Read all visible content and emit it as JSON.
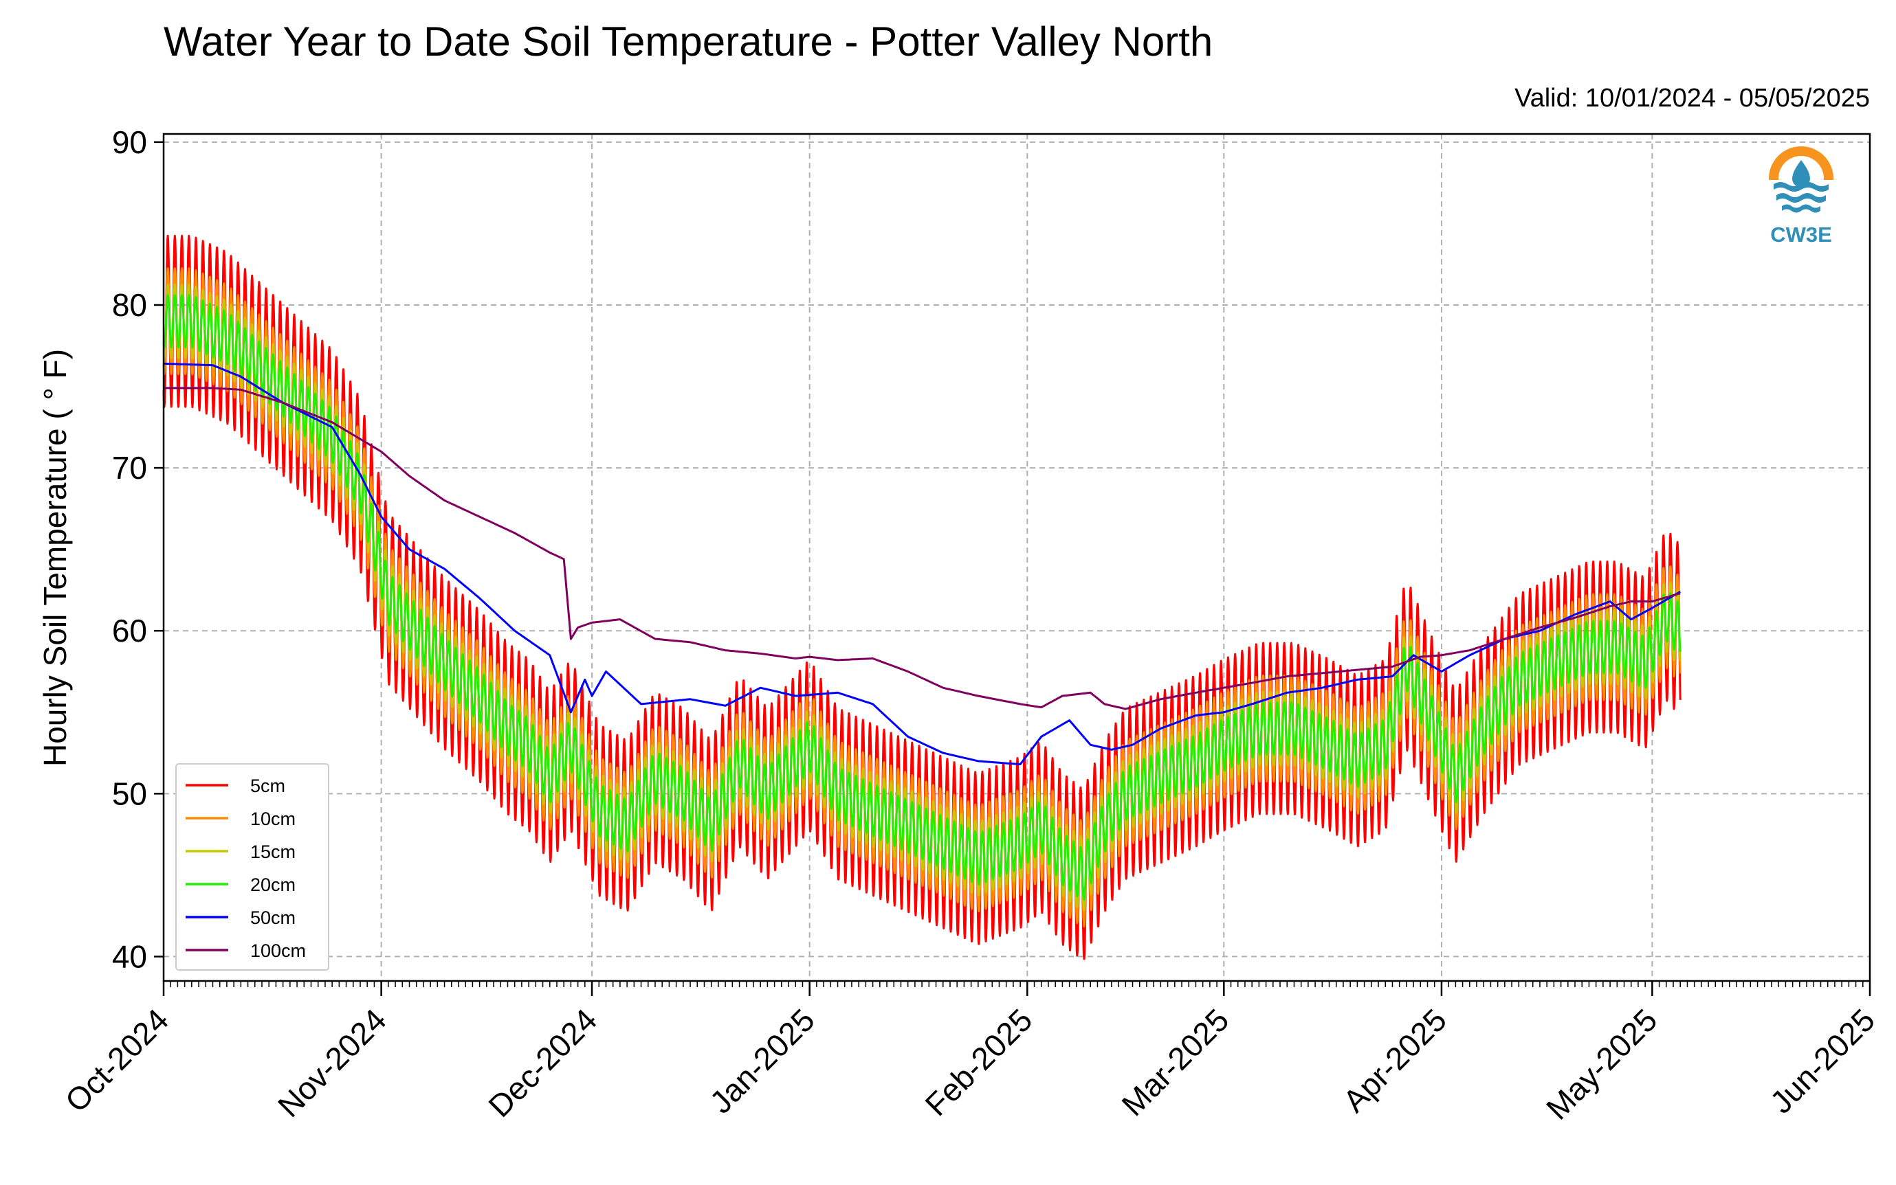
{
  "title": "Water Year to Date Soil Temperature - Potter Valley North",
  "valid_range": "Valid: 10/01/2024 - 05/05/2025",
  "logo": {
    "text": "CW3E",
    "icon": "cw3e-logo-icon"
  },
  "colors": {
    "5cm": "#ff0000",
    "10cm": "#ff8c00",
    "15cm": "#c8c800",
    "20cm": "#22ee00",
    "50cm": "#0000ff",
    "100cm": "#800060"
  },
  "chart_data": {
    "type": "line",
    "title": "Water Year to Date Soil Temperature - Potter Valley North",
    "xlabel": "",
    "ylabel": "Hourly Soil Temperature ( ° F)",
    "xlim": [
      "2024-10-01",
      "2025-06-01"
    ],
    "ylim": [
      38.5,
      90.5
    ],
    "yticks": [
      40,
      50,
      60,
      70,
      80,
      90
    ],
    "xticks": [
      {
        "date": "2024-10-01",
        "label": "Oct-2024"
      },
      {
        "date": "2024-11-01",
        "label": "Nov-2024"
      },
      {
        "date": "2024-12-01",
        "label": "Dec-2024"
      },
      {
        "date": "2025-01-01",
        "label": "Jan-2025"
      },
      {
        "date": "2025-02-01",
        "label": "Feb-2025"
      },
      {
        "date": "2025-03-01",
        "label": "Mar-2025"
      },
      {
        "date": "2025-04-01",
        "label": "Apr-2025"
      },
      {
        "date": "2025-05-01",
        "label": "May-2025"
      },
      {
        "date": "2025-06-01",
        "label": "Jun-2025"
      }
    ],
    "grid": true,
    "legend_position": "lower-left",
    "series_order": [
      "5cm",
      "10cm",
      "15cm",
      "20cm",
      "50cm",
      "100cm"
    ],
    "legend": [
      "5cm",
      "10cm",
      "15cm",
      "20cm",
      "50cm",
      "100cm"
    ],
    "series": [
      {
        "name": "5cm",
        "color": "#ff0000",
        "amplitude": 10.5,
        "x": [
          "2024-10-01",
          "2024-10-05",
          "2024-10-10",
          "2024-10-15",
          "2024-10-20",
          "2024-10-25",
          "2024-10-29",
          "2024-11-02",
          "2024-11-06",
          "2024-11-10",
          "2024-11-15",
          "2024-11-19",
          "2024-11-22",
          "2024-11-25",
          "2024-11-28",
          "2024-12-02",
          "2024-12-06",
          "2024-12-10",
          "2024-12-14",
          "2024-12-18",
          "2024-12-22",
          "2024-12-26",
          "2024-12-30",
          "2025-01-01",
          "2025-01-05",
          "2025-01-10",
          "2025-01-15",
          "2025-01-20",
          "2025-01-25",
          "2025-01-31",
          "2025-02-03",
          "2025-02-06",
          "2025-02-09",
          "2025-02-12",
          "2025-02-15",
          "2025-02-20",
          "2025-02-25",
          "2025-03-01",
          "2025-03-06",
          "2025-03-11",
          "2025-03-16",
          "2025-03-20",
          "2025-03-24",
          "2025-03-27",
          "2025-03-31",
          "2025-04-03",
          "2025-04-07",
          "2025-04-12",
          "2025-04-17",
          "2025-04-22",
          "2025-04-26",
          "2025-04-30",
          "2025-05-03",
          "2025-05-05"
        ],
        "y": [
          79,
          79,
          78,
          76,
          74,
          72,
          69,
          62,
          60,
          58,
          56,
          54,
          53,
          51,
          53,
          49,
          48,
          51,
          50,
          48,
          52,
          50,
          52,
          53,
          50,
          49,
          48,
          47,
          46,
          47,
          48,
          46,
          45,
          48,
          50,
          51,
          52,
          53,
          54,
          54,
          53,
          52,
          53,
          58,
          54,
          51,
          54,
          57,
          58,
          59,
          59,
          58,
          61,
          60
        ]
      },
      {
        "name": "10cm",
        "color": "#ff8c00",
        "amplitude": 6.5,
        "x": [
          "2024-10-01",
          "2024-10-05",
          "2024-10-10",
          "2024-10-15",
          "2024-10-20",
          "2024-10-25",
          "2024-10-29",
          "2024-11-02",
          "2024-11-06",
          "2024-11-10",
          "2024-11-15",
          "2024-11-19",
          "2024-11-22",
          "2024-11-25",
          "2024-11-28",
          "2024-12-02",
          "2024-12-06",
          "2024-12-10",
          "2024-12-14",
          "2024-12-18",
          "2024-12-22",
          "2024-12-26",
          "2024-12-30",
          "2025-01-01",
          "2025-01-05",
          "2025-01-10",
          "2025-01-15",
          "2025-01-20",
          "2025-01-25",
          "2025-01-31",
          "2025-02-03",
          "2025-02-06",
          "2025-02-09",
          "2025-02-12",
          "2025-02-15",
          "2025-02-20",
          "2025-02-25",
          "2025-03-01",
          "2025-03-06",
          "2025-03-11",
          "2025-03-16",
          "2025-03-20",
          "2025-03-24",
          "2025-03-27",
          "2025-03-31",
          "2025-04-03",
          "2025-04-07",
          "2025-04-12",
          "2025-04-17",
          "2025-04-22",
          "2025-04-26",
          "2025-04-30",
          "2025-05-03",
          "2025-05-05"
        ],
        "y": [
          79,
          79,
          78,
          76,
          74,
          72,
          69,
          62,
          60,
          58,
          56,
          54,
          53,
          51,
          53,
          49,
          48,
          51,
          50,
          48,
          52,
          50,
          52,
          53,
          50,
          49,
          48,
          47,
          46,
          47,
          48,
          46,
          45,
          48,
          50,
          51,
          52,
          53,
          54,
          54,
          53,
          52,
          53,
          58,
          54,
          51,
          54,
          57,
          58,
          59,
          59,
          58,
          61,
          60
        ]
      },
      {
        "name": "15cm",
        "color": "#c8c800",
        "amplitude": 4.5,
        "x": [
          "2024-10-01",
          "2024-10-05",
          "2024-10-10",
          "2024-10-15",
          "2024-10-20",
          "2024-10-25",
          "2024-10-29",
          "2024-11-02",
          "2024-11-06",
          "2024-11-10",
          "2024-11-15",
          "2024-11-19",
          "2024-11-22",
          "2024-11-25",
          "2024-11-28",
          "2024-12-02",
          "2024-12-06",
          "2024-12-10",
          "2024-12-14",
          "2024-12-18",
          "2024-12-22",
          "2024-12-26",
          "2024-12-30",
          "2025-01-01",
          "2025-01-05",
          "2025-01-10",
          "2025-01-15",
          "2025-01-20",
          "2025-01-25",
          "2025-01-31",
          "2025-02-03",
          "2025-02-06",
          "2025-02-09",
          "2025-02-12",
          "2025-02-15",
          "2025-02-20",
          "2025-02-25",
          "2025-03-01",
          "2025-03-06",
          "2025-03-11",
          "2025-03-16",
          "2025-03-20",
          "2025-03-24",
          "2025-03-27",
          "2025-03-31",
          "2025-04-03",
          "2025-04-07",
          "2025-04-12",
          "2025-04-17",
          "2025-04-22",
          "2025-04-26",
          "2025-04-30",
          "2025-05-03",
          "2025-05-05"
        ],
        "y": [
          79,
          79,
          78,
          76,
          74,
          72,
          69,
          62,
          60,
          58,
          56,
          54,
          53,
          51,
          53,
          49,
          48,
          51,
          50,
          48,
          52,
          50,
          52,
          53,
          50,
          49,
          48,
          47,
          46,
          47,
          48,
          46,
          45,
          48,
          50,
          51,
          52,
          53,
          54,
          54,
          53,
          52,
          53,
          58,
          54,
          51,
          54,
          57,
          58,
          59,
          59,
          58,
          61,
          60
        ]
      },
      {
        "name": "20cm",
        "color": "#22ee00",
        "amplitude": 3.2,
        "x": [
          "2024-10-01",
          "2024-10-05",
          "2024-10-10",
          "2024-10-15",
          "2024-10-20",
          "2024-10-25",
          "2024-10-29",
          "2024-11-02",
          "2024-11-06",
          "2024-11-10",
          "2024-11-15",
          "2024-11-19",
          "2024-11-22",
          "2024-11-25",
          "2024-11-28",
          "2024-12-02",
          "2024-12-06",
          "2024-12-10",
          "2024-12-14",
          "2024-12-18",
          "2024-12-22",
          "2024-12-26",
          "2024-12-30",
          "2025-01-01",
          "2025-01-05",
          "2025-01-10",
          "2025-01-15",
          "2025-01-20",
          "2025-01-25",
          "2025-01-31",
          "2025-02-03",
          "2025-02-06",
          "2025-02-09",
          "2025-02-12",
          "2025-02-15",
          "2025-02-20",
          "2025-02-25",
          "2025-03-01",
          "2025-03-06",
          "2025-03-11",
          "2025-03-16",
          "2025-03-20",
          "2025-03-24",
          "2025-03-27",
          "2025-03-31",
          "2025-04-03",
          "2025-04-07",
          "2025-04-12",
          "2025-04-17",
          "2025-04-22",
          "2025-04-26",
          "2025-04-30",
          "2025-05-03",
          "2025-05-05"
        ],
        "y": [
          79,
          79,
          78,
          76,
          74,
          72,
          69,
          62,
          60,
          58,
          56,
          54,
          53,
          51,
          53,
          49,
          48,
          51,
          50,
          48,
          52,
          50,
          52,
          53,
          50,
          49,
          48,
          47,
          46,
          47,
          48,
          46,
          45,
          48,
          50,
          51,
          52,
          53,
          54,
          54,
          53,
          52,
          53,
          58,
          54,
          51,
          54,
          57,
          58,
          59,
          59,
          58,
          61,
          60
        ]
      },
      {
        "name": "50cm",
        "color": "#0000ff",
        "amplitude": 0,
        "x": [
          "2024-10-01",
          "2024-10-08",
          "2024-10-12",
          "2024-10-18",
          "2024-10-25",
          "2024-10-29",
          "2024-11-01",
          "2024-11-05",
          "2024-11-10",
          "2024-11-15",
          "2024-11-20",
          "2024-11-25",
          "2024-11-28",
          "2024-11-30",
          "2024-12-01",
          "2024-12-03",
          "2024-12-08",
          "2024-12-15",
          "2024-12-20",
          "2024-12-25",
          "2024-12-30",
          "2025-01-05",
          "2025-01-10",
          "2025-01-15",
          "2025-01-20",
          "2025-01-25",
          "2025-01-31",
          "2025-02-03",
          "2025-02-07",
          "2025-02-10",
          "2025-02-13",
          "2025-02-16",
          "2025-02-20",
          "2025-02-25",
          "2025-03-01",
          "2025-03-05",
          "2025-03-10",
          "2025-03-15",
          "2025-03-20",
          "2025-03-25",
          "2025-03-28",
          "2025-04-01",
          "2025-04-05",
          "2025-04-10",
          "2025-04-15",
          "2025-04-20",
          "2025-04-25",
          "2025-04-28",
          "2025-05-01",
          "2025-05-05"
        ],
        "y": [
          76.4,
          76.3,
          75.6,
          74,
          72.5,
          69.6,
          67,
          65,
          63.8,
          62,
          60,
          58.5,
          55,
          57,
          56,
          57.5,
          55.5,
          55.8,
          55.4,
          56.5,
          56,
          56.2,
          55.5,
          53.5,
          52.5,
          52,
          51.8,
          53.5,
          54.5,
          53,
          52.7,
          53,
          54,
          54.8,
          55,
          55.5,
          56.2,
          56.5,
          57,
          57.2,
          58.5,
          57.5,
          58.5,
          59.5,
          60,
          61,
          61.8,
          60.7,
          61.4,
          62.4
        ]
      },
      {
        "name": "100cm",
        "color": "#800060",
        "amplitude": 0,
        "x": [
          "2024-10-01",
          "2024-10-08",
          "2024-10-12",
          "2024-10-18",
          "2024-10-25",
          "2024-11-01",
          "2024-11-05",
          "2024-11-10",
          "2024-11-15",
          "2024-11-20",
          "2024-11-25",
          "2024-11-27",
          "2024-11-28",
          "2024-11-29",
          "2024-12-01",
          "2024-12-05",
          "2024-12-10",
          "2024-12-15",
          "2024-12-20",
          "2024-12-25",
          "2024-12-30",
          "2025-01-01",
          "2025-01-05",
          "2025-01-10",
          "2025-01-15",
          "2025-01-20",
          "2025-01-25",
          "2025-01-31",
          "2025-02-03",
          "2025-02-06",
          "2025-02-10",
          "2025-02-12",
          "2025-02-15",
          "2025-02-20",
          "2025-02-25",
          "2025-03-01",
          "2025-03-05",
          "2025-03-10",
          "2025-03-15",
          "2025-03-20",
          "2025-03-25",
          "2025-03-29",
          "2025-04-01",
          "2025-04-05",
          "2025-04-10",
          "2025-04-15",
          "2025-04-20",
          "2025-04-25",
          "2025-04-28",
          "2025-05-01",
          "2025-05-05"
        ],
        "y": [
          74.9,
          74.9,
          74.8,
          74,
          72.8,
          71,
          69.5,
          68,
          67,
          66,
          64.8,
          64.4,
          59.5,
          60.2,
          60.5,
          60.7,
          59.5,
          59.3,
          58.8,
          58.6,
          58.3,
          58.4,
          58.2,
          58.3,
          57.5,
          56.5,
          56,
          55.5,
          55.3,
          56,
          56.2,
          55.5,
          55.2,
          55.8,
          56.2,
          56.5,
          56.8,
          57.2,
          57.4,
          57.6,
          57.8,
          58.4,
          58.5,
          58.8,
          59.5,
          60.2,
          60.8,
          61.5,
          61.8,
          61.8,
          62.3
        ]
      }
    ]
  }
}
